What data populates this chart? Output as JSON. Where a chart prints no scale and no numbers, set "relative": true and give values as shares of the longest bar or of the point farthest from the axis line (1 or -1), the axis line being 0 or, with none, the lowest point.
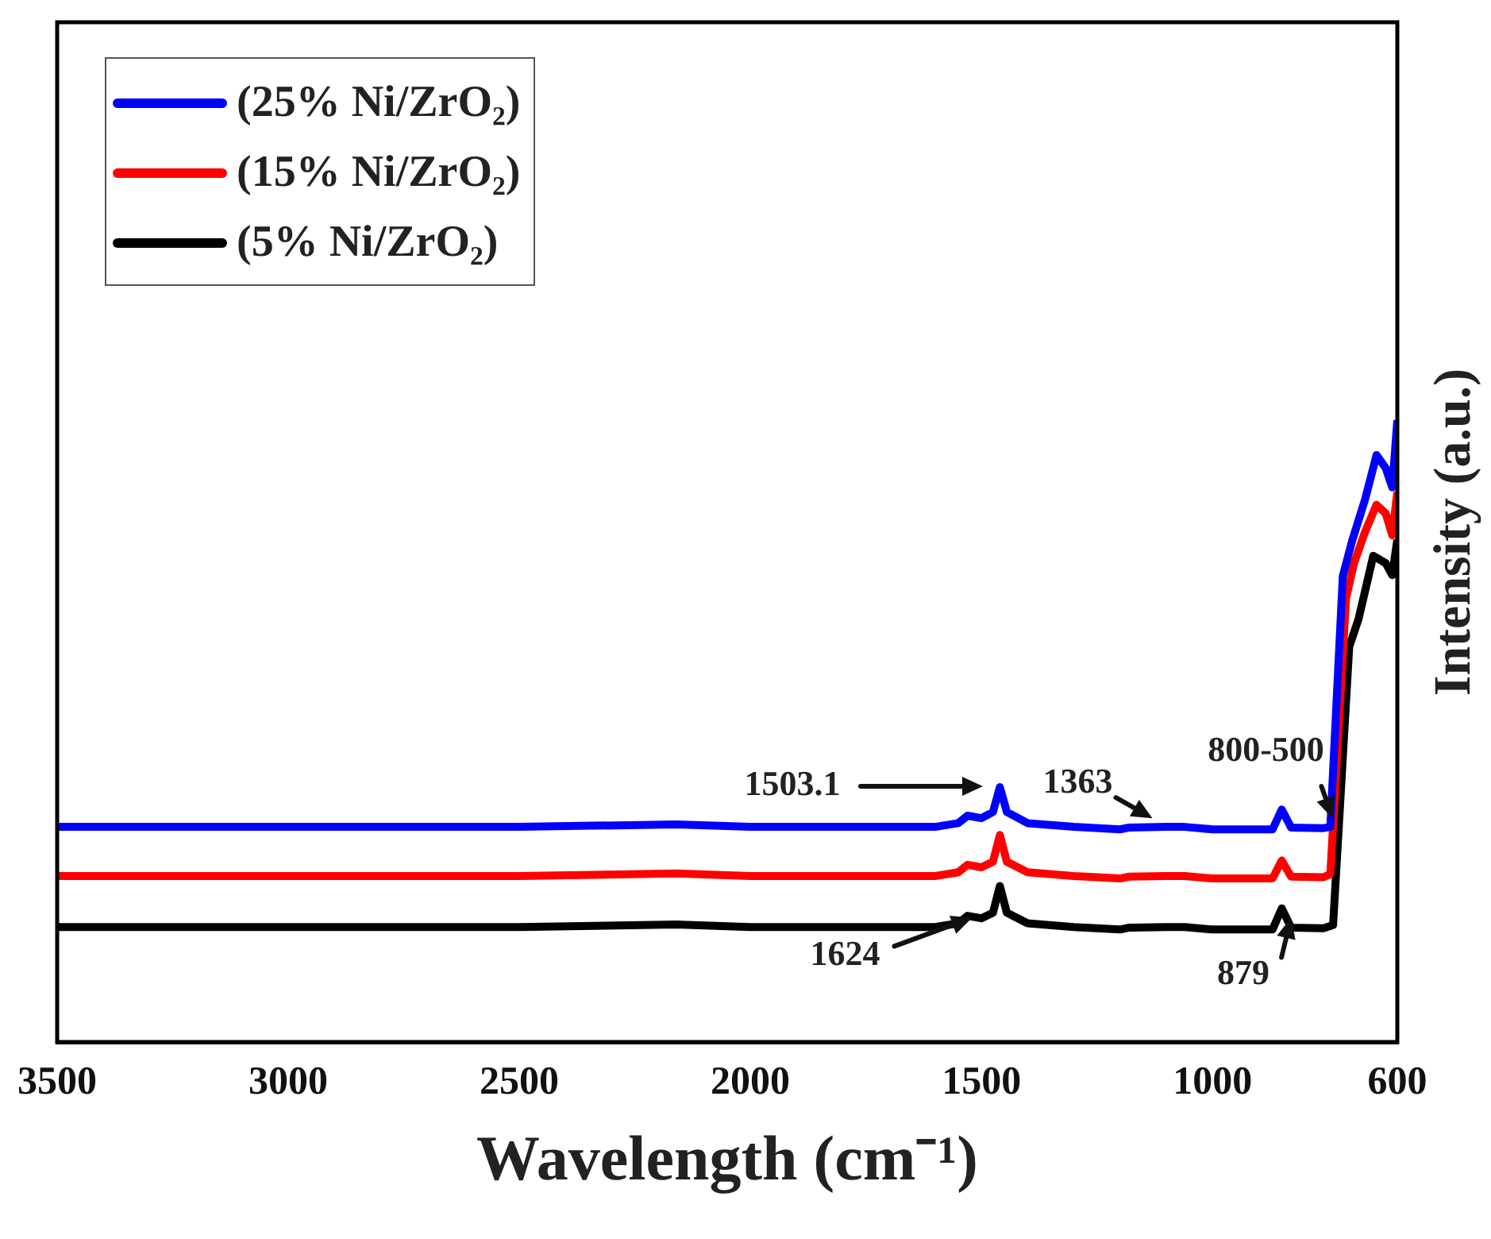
{
  "chart_data": {
    "type": "line",
    "relative": true,
    "xlabel": "Wavelength (cm⁻¹)",
    "ylabel": "Intensity (a.u.)",
    "xlim": [
      3500,
      600
    ],
    "xticks": [
      3500,
      3000,
      2500,
      2000,
      1500,
      1000,
      600
    ],
    "legend": "top left",
    "series": [
      {
        "name": "(25% Ni/ZrO₂)",
        "color": "#0000ff",
        "x": [
          3500,
          3000,
          2500,
          2160,
          2000,
          1600,
          1550,
          1530,
          1500,
          1475,
          1460,
          1445,
          1400,
          1300,
          1200,
          1180,
          1100,
          1060,
          1000,
          870,
          850,
          830,
          760,
          745,
          718,
          697,
          670,
          645,
          625,
          611,
          600
        ],
        "values": [
          0.346,
          0.346,
          0.346,
          0.35,
          0.346,
          0.346,
          0.352,
          0.364,
          0.36,
          0.37,
          0.41,
          0.37,
          0.352,
          0.346,
          0.342,
          0.345,
          0.346,
          0.346,
          0.342,
          0.342,
          0.374,
          0.345,
          0.344,
          0.346,
          0.749,
          0.808,
          0.872,
          0.944,
          0.923,
          0.892,
          1
        ]
      },
      {
        "name": "(15% Ni/ZrO₂)",
        "color": "#ff0000",
        "x": [
          3500,
          3000,
          2500,
          2160,
          2000,
          1600,
          1550,
          1530,
          1500,
          1475,
          1460,
          1445,
          1400,
          1300,
          1200,
          1180,
          1100,
          1060,
          1000,
          870,
          850,
          830,
          760,
          745,
          711,
          694,
          670,
          645,
          625,
          611,
          600
        ],
        "values": [
          0.267,
          0.267,
          0.267,
          0.271,
          0.267,
          0.267,
          0.273,
          0.285,
          0.281,
          0.29,
          0.333,
          0.29,
          0.273,
          0.267,
          0.263,
          0.266,
          0.267,
          0.267,
          0.263,
          0.263,
          0.292,
          0.266,
          0.265,
          0.27,
          0.713,
          0.769,
          0.82,
          0.864,
          0.85,
          0.815,
          0.885
        ]
      },
      {
        "name": "(5% Ni/ZrO₂)",
        "color": "#000000",
        "x": [
          3500,
          3000,
          2500,
          2160,
          2000,
          1600,
          1550,
          1530,
          1500,
          1475,
          1460,
          1445,
          1400,
          1300,
          1200,
          1180,
          1100,
          1060,
          1000,
          870,
          850,
          830,
          760,
          739,
          704,
          684,
          652,
          625,
          611,
          600
        ],
        "values": [
          0.185,
          0.185,
          0.185,
          0.189,
          0.185,
          0.185,
          0.191,
          0.203,
          0.199,
          0.208,
          0.251,
          0.208,
          0.191,
          0.185,
          0.181,
          0.184,
          0.185,
          0.185,
          0.181,
          0.181,
          0.215,
          0.184,
          0.183,
          0.188,
          0.636,
          0.68,
          0.782,
          0.77,
          0.751,
          0.808
        ]
      }
    ],
    "annotations": [
      "1503.1",
      {
        "text": "1363",
        "x": 1130,
        "y": 0.36
      },
      {
        "text": "800-500",
        "x": 740,
        "y": 0.36
      },
      {
        "text": "1624",
        "x": 1520,
        "y": 0.2
      },
      {
        "text": "879",
        "x": 830,
        "y": 0.2
      }
    ]
  }
}
